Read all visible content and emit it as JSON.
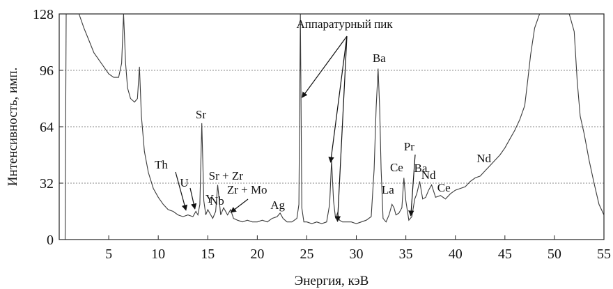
{
  "chart_data": {
    "type": "line",
    "xlabel": "Энергия, кэВ",
    "ylabel": "Интенсивность, имп.",
    "xlim": [
      0,
      55
    ],
    "ylim": [
      0,
      128
    ],
    "xticks": [
      "5",
      "10",
      "15",
      "20",
      "25",
      "30",
      "35",
      "40",
      "45",
      "50",
      "55"
    ],
    "yticks": [
      "0",
      "32",
      "64",
      "96",
      "128"
    ],
    "grid": "horizontal dotted at y ticks",
    "colors": {
      "line": "#3a3a3a",
      "grid": "#888888",
      "axis": "#222222"
    },
    "series": [
      {
        "x": [
          0.6,
          0.7,
          0.75,
          1.0,
          1.5,
          2.0,
          2.5,
          3.0,
          3.5,
          4.0,
          4.5,
          5.0,
          5.5,
          6.0,
          6.3,
          6.5,
          6.7,
          6.9,
          7.2,
          7.6,
          7.9,
          8.1,
          8.3,
          8.6,
          9.0,
          9.5,
          10.0,
          10.5,
          11.0,
          11.5,
          12.0,
          12.5,
          13.0,
          13.5,
          13.8,
          14.0,
          14.2,
          14.4,
          14.6,
          14.8,
          15.0,
          15.2,
          15.5,
          15.8,
          16.0,
          16.3,
          16.6,
          17.0,
          17.3,
          17.6,
          18.0,
          18.5,
          19.0,
          19.5,
          20.0,
          20.5,
          21.0,
          21.5,
          22.0,
          22.3,
          22.6,
          23.0,
          23.5,
          24.0,
          24.2,
          24.35,
          24.5,
          24.7,
          25.0,
          25.5,
          26.0,
          26.5,
          27.0,
          27.3,
          27.5,
          27.7,
          27.9,
          28.1,
          28.3,
          28.6,
          29.0,
          29.5,
          30.0,
          30.5,
          31.0,
          31.5,
          31.8,
          32.0,
          32.2,
          32.35,
          32.5,
          32.7,
          33.0,
          33.3,
          33.6,
          33.8,
          34.0,
          34.3,
          34.6,
          34.8,
          35.0,
          35.3,
          35.6,
          35.9,
          36.1,
          36.4,
          36.7,
          37.0,
          37.3,
          37.6,
          38.0,
          38.5,
          39.0,
          39.5,
          40.0,
          40.5,
          41.0,
          41.5,
          42.0,
          42.5,
          43.0,
          43.5,
          44.0,
          44.5,
          45.0,
          45.5,
          46.0,
          46.5,
          47.0,
          47.3,
          47.6,
          48.0,
          48.5,
          49.0,
          50.0,
          51.0,
          51.5,
          52.0,
          52.3,
          52.6,
          53.0,
          53.5,
          54.0,
          54.5,
          55.0
        ],
        "y": [
          0,
          128,
          128,
          128,
          128,
          128,
          120,
          113,
          106,
          102,
          98,
          94,
          92,
          92,
          100,
          128,
          100,
          86,
          80,
          78,
          80,
          98,
          70,
          50,
          38,
          29,
          24,
          20,
          17,
          16,
          14,
          13,
          14,
          13,
          16,
          14,
          20,
          66,
          22,
          14,
          17,
          15,
          12,
          16,
          31,
          14,
          18,
          14,
          17,
          12,
          11,
          10,
          11,
          10,
          10,
          11,
          10,
          12,
          13,
          15,
          12,
          10,
          10,
          12,
          20,
          128,
          18,
          10,
          10,
          9,
          10,
          9,
          10,
          20,
          45,
          22,
          12,
          15,
          11,
          10,
          10,
          10,
          9,
          10,
          11,
          13,
          40,
          75,
          97,
          75,
          40,
          12,
          10,
          14,
          20,
          18,
          14,
          15,
          18,
          35,
          22,
          11,
          13,
          23,
          26,
          33,
          23,
          24,
          28,
          31,
          24,
          25,
          23,
          26,
          28,
          29,
          30,
          33,
          35,
          36,
          39,
          42,
          45,
          48,
          52,
          57,
          62,
          68,
          76,
          90,
          105,
          120,
          128,
          128,
          128,
          128,
          128,
          118,
          90,
          70,
          60,
          45,
          32,
          20,
          14
        ]
      }
    ],
    "annotations": [
      {
        "text": "Аппаратурный пик",
        "x": 24.3
      },
      {
        "text": "Th",
        "x": 12.8
      },
      {
        "text": "U",
        "x": 13.6
      },
      {
        "text": "Sr",
        "x": 14.2
      },
      {
        "text": "Sr + Zr",
        "x": 15.8
      },
      {
        "text": "Y",
        "x": 14.9
      },
      {
        "text": "Nb",
        "x": 16.6
      },
      {
        "text": "Zr + Mo",
        "x": 17.5
      },
      {
        "text": "Ag",
        "x": 22.1
      },
      {
        "text": "Ba",
        "x": 32.2
      },
      {
        "text": "Ce",
        "x": 34.6
      },
      {
        "text": "La",
        "x": 33.4
      },
      {
        "text": "Pr",
        "x": 35.5
      },
      {
        "text": "Ba",
        "x": 36.4
      },
      {
        "text": "Nd",
        "x": 37.4
      },
      {
        "text": "Ce",
        "x": 39.3
      },
      {
        "text": "Nd",
        "x": 43.2
      }
    ]
  }
}
